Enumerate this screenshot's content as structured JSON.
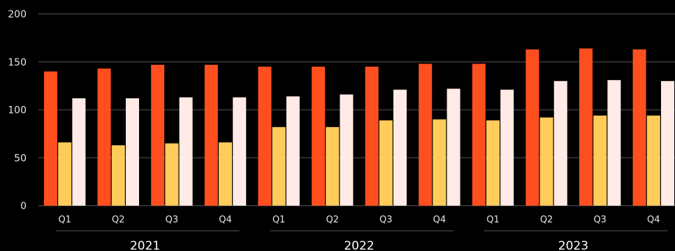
{
  "chart_data": {
    "type": "bar",
    "groups": [
      "2021",
      "2022",
      "2023"
    ],
    "categories": [
      "Q1",
      "Q2",
      "Q3",
      "Q4",
      "Q1",
      "Q2",
      "Q3",
      "Q4",
      "Q1",
      "Q2",
      "Q3",
      "Q4"
    ],
    "series": [
      {
        "color": "#ff4f1f",
        "values": [
          140,
          143,
          147,
          147,
          145,
          145,
          145,
          148,
          148,
          163,
          164,
          163
        ]
      },
      {
        "color": "#ffcc5c",
        "values": [
          66,
          63,
          65,
          66,
          82,
          82,
          89,
          90,
          89,
          92,
          94,
          94
        ]
      },
      {
        "color": "#ffeae6",
        "values": [
          112,
          112,
          113,
          113,
          114,
          116,
          121,
          122,
          121,
          130,
          131,
          130
        ]
      }
    ],
    "yticks": [
      0,
      50,
      100,
      150,
      200
    ],
    "ylim": [
      0,
      200
    ],
    "grid": true,
    "legend": "none",
    "title": "",
    "xlabel": "",
    "ylabel": ""
  }
}
